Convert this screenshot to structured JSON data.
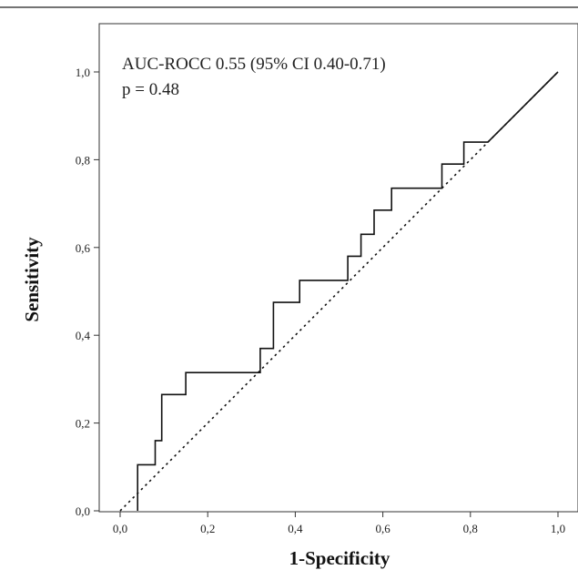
{
  "chart_data": {
    "type": "line",
    "xlabel": "1-Specificity",
    "ylabel": "Sensitivity",
    "xlim": [
      0,
      1
    ],
    "ylim": [
      0,
      1
    ],
    "xticks": [
      "0,0",
      "0,2",
      "0,4",
      "0,6",
      "0,8",
      "1,0"
    ],
    "yticks": [
      "0,0",
      "0,2",
      "0,4",
      "0,6",
      "0,8",
      "1,0"
    ],
    "xtick_values": [
      0,
      0.2,
      0.4,
      0.6,
      0.8,
      1.0
    ],
    "ytick_values": [
      0,
      0.2,
      0.4,
      0.6,
      0.8,
      1.0
    ],
    "annotations": [
      "AUC-ROCC 0.55 (95% CI 0.40-0.71)",
      "p = 0.48"
    ],
    "grid": false,
    "series": [
      {
        "style": "solid",
        "x": [
          0.04,
          0.04,
          0.08,
          0.08,
          0.095,
          0.095,
          0.15,
          0.15,
          0.32,
          0.32,
          0.35,
          0.35,
          0.41,
          0.41,
          0.52,
          0.52,
          0.55,
          0.55,
          0.58,
          0.58,
          0.62,
          0.62,
          0.735,
          0.735,
          0.785,
          0.785,
          0.84,
          1.0
        ],
        "y": [
          0.0,
          0.105,
          0.105,
          0.16,
          0.16,
          0.265,
          0.265,
          0.315,
          0.315,
          0.37,
          0.37,
          0.475,
          0.475,
          0.525,
          0.525,
          0.58,
          0.58,
          0.63,
          0.63,
          0.685,
          0.685,
          0.735,
          0.735,
          0.79,
          0.79,
          0.84,
          0.84,
          1.0
        ]
      },
      {
        "style": "dotted",
        "x": [
          0,
          1
        ],
        "y": [
          0,
          1
        ]
      }
    ]
  }
}
